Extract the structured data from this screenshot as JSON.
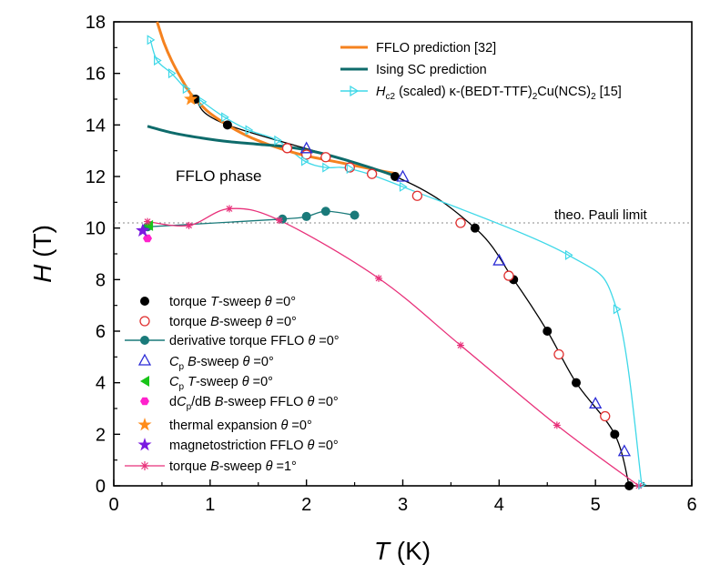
{
  "chart_data": {
    "type": "scatter",
    "xlabel": "T (K)",
    "ylabel": "H (T)",
    "xlim": [
      0,
      6
    ],
    "ylim": [
      0,
      18
    ],
    "x_ticks": [
      "0",
      "1",
      "2",
      "3",
      "4",
      "5",
      "6"
    ],
    "y_ticks": [
      "0",
      "2",
      "4",
      "6",
      "8",
      "10",
      "12",
      "14",
      "16",
      "18"
    ],
    "annotations": {
      "fflo_phase": "FFLO phase",
      "pauli_limit": "theo. Pauli limit",
      "pauli_limit_value": 10.2
    },
    "legend_top": [
      {
        "id": "fflo-prediction",
        "label": "FFLO prediction [32]",
        "color": "#f5821f"
      },
      {
        "id": "ising-prediction",
        "label": "Ising SC prediction",
        "color": "#0e6b6b"
      },
      {
        "id": "hc2-scaled",
        "label": "Hc2 (scaled) κ-(BEDT-TTF)2Cu(NCS)2 [15]",
        "color": "#3fd8e8"
      }
    ],
    "legend_bottom": [
      {
        "id": "torque-t-sweep",
        "label": "torque T-sweep θ=0°"
      },
      {
        "id": "torque-b-sweep",
        "label": "torque B-sweep θ=0°"
      },
      {
        "id": "derivative-torque",
        "label": "derivative torque FFLO θ=0°"
      },
      {
        "id": "cp-b-sweep",
        "label": "Cp B-sweep θ=0°"
      },
      {
        "id": "cp-t-sweep",
        "label": "Cp T-sweep θ=0°"
      },
      {
        "id": "dcp-db",
        "label": "dCp/dB B-sweep FFLO θ=0°"
      },
      {
        "id": "thermal-expansion",
        "label": "thermal expansion θ=0°"
      },
      {
        "id": "magnetostriction",
        "label": "magnetostriction FFLO θ=0°"
      },
      {
        "id": "torque-b-sweep-1deg",
        "label": "torque B-sweep θ=1°"
      }
    ],
    "series": [
      {
        "name": "torque T-sweep θ=0°",
        "marker": "filled-circle",
        "color": "#000000",
        "connect": true,
        "x": [
          0.85,
          1.18,
          2.92,
          3.75,
          4.15,
          4.5,
          4.8,
          5.2,
          5.35
        ],
        "y": [
          15.0,
          14.0,
          12.0,
          10.0,
          8.0,
          6.0,
          4.0,
          2.0,
          0.0
        ]
      },
      {
        "name": "torque B-sweep θ=0°",
        "marker": "open-circle",
        "color": "#e03030",
        "connect": false,
        "x": [
          1.8,
          2.0,
          2.2,
          2.45,
          2.68,
          3.15,
          3.6,
          4.1,
          4.62,
          5.1
        ],
        "y": [
          13.1,
          12.85,
          12.75,
          12.35,
          12.1,
          11.25,
          10.2,
          8.15,
          5.1,
          2.7
        ]
      },
      {
        "name": "derivative torque FFLO θ=0°",
        "marker": "filled-circle",
        "color": "#1a7a7a",
        "connect": true,
        "x": [
          0.35,
          1.75,
          2.0,
          2.2,
          2.5
        ],
        "y": [
          10.05,
          10.35,
          10.45,
          10.65,
          10.5
        ]
      },
      {
        "name": "Cp B-sweep θ=0°",
        "marker": "open-triangle",
        "color": "#2b2bd6",
        "connect": false,
        "x": [
          2.0,
          3.0,
          4.0,
          5.0,
          5.3
        ],
        "y": [
          13.1,
          12.0,
          8.75,
          3.2,
          1.35
        ]
      },
      {
        "name": "Cp T-sweep θ=0°",
        "marker": "filled-triangle-left",
        "color": "#19c419",
        "connect": false,
        "x": [
          0.36
        ],
        "y": [
          10.1
        ]
      },
      {
        "name": "dCp/dB B-sweep FFLO θ=0°",
        "marker": "filled-hexagon",
        "color": "#ff22cc",
        "connect": false,
        "x": [
          0.35
        ],
        "y": [
          9.6
        ]
      },
      {
        "name": "thermal expansion θ=0°",
        "marker": "filled-star",
        "color": "#ff8c1a",
        "connect": false,
        "x": [
          0.8
        ],
        "y": [
          15.0
        ]
      },
      {
        "name": "magnetostriction FFLO θ=0°",
        "marker": "filled-star",
        "color": "#7a1ae0",
        "connect": false,
        "x": [
          0.3
        ],
        "y": [
          9.9
        ]
      },
      {
        "name": "torque B-sweep θ=1°",
        "marker": "asterisk",
        "color": "#e8317a",
        "connect": true,
        "x": [
          0.35,
          0.78,
          1.2,
          1.72,
          2.75,
          3.6,
          4.6,
          5.45
        ],
        "y": [
          10.25,
          10.1,
          10.75,
          10.3,
          8.05,
          5.45,
          2.35,
          0.0
        ]
      },
      {
        "name": "Hc2 (scaled) κ-(BEDT-TTF)2Cu(NCS)2 [15]",
        "marker": "open-triangle-right",
        "color": "#3fd8e8",
        "connect": true,
        "x": [
          0.38,
          0.45,
          0.6,
          0.75,
          0.92,
          1.15,
          1.4,
          1.7,
          1.98,
          2.2,
          2.45,
          3.0,
          4.72,
          5.22,
          5.48
        ],
        "y": [
          17.3,
          16.5,
          16.0,
          15.4,
          14.9,
          14.3,
          13.8,
          13.4,
          12.6,
          12.35,
          12.3,
          11.6,
          8.95,
          6.85,
          0.05
        ]
      },
      {
        "name": "FFLO prediction [32]",
        "marker": "line",
        "color": "#f5821f",
        "connect": true,
        "x": [
          0.45,
          0.52,
          0.6,
          0.7,
          0.8,
          0.9,
          1.0,
          1.2,
          1.4,
          1.6,
          1.8,
          2.0,
          2.2,
          2.4,
          2.6,
          2.8,
          2.95
        ],
        "y": [
          18.0,
          17.2,
          16.5,
          15.8,
          15.2,
          14.8,
          14.45,
          13.95,
          13.55,
          13.25,
          13.0,
          12.8,
          12.65,
          12.5,
          12.35,
          12.2,
          12.1
        ]
      },
      {
        "name": "Ising SC prediction",
        "marker": "line",
        "color": "#0e6b6b",
        "connect": true,
        "x": [
          0.35,
          0.6,
          0.9,
          1.2,
          1.5,
          1.8,
          2.1,
          2.4,
          2.7,
          2.9
        ],
        "y": [
          13.95,
          13.7,
          13.5,
          13.35,
          13.25,
          13.15,
          12.95,
          12.65,
          12.3,
          12.05
        ]
      }
    ]
  }
}
